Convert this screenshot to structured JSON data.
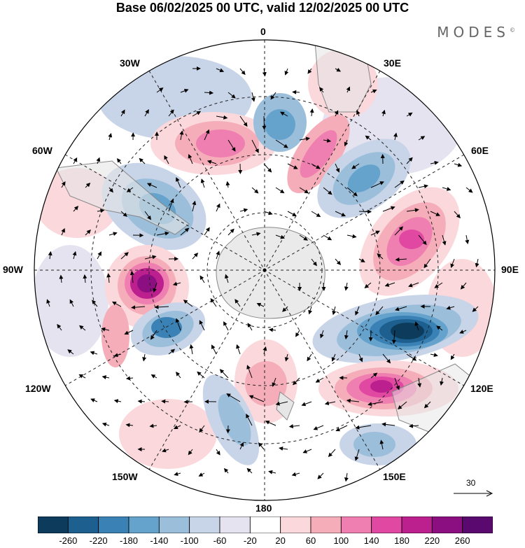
{
  "title": "Base 06/02/2025 00 UTC, valid 12/02/2025 00 UTC",
  "brand": "MODES",
  "brand_mark": "©",
  "longitude_labels": {
    "lon_0": "0",
    "lon_30e": "30E",
    "lon_60e": "60E",
    "lon_90e": "90E",
    "lon_120e": "120E",
    "lon_150e": "150E",
    "lon_180": "180",
    "lon_150w": "150W",
    "lon_120w": "120W",
    "lon_90w": "90W",
    "lon_60w": "60W",
    "lon_30w": "30W"
  },
  "vector_scale_label": "30",
  "colorbar": {
    "tick_labels": [
      "-260",
      "-220",
      "-180",
      "-140",
      "-100",
      "-60",
      "-20",
      "20",
      "60",
      "100",
      "140",
      "180",
      "220",
      "260"
    ],
    "colors": [
      "#0d3b5c",
      "#1d5f8e",
      "#3a82b5",
      "#65a3cc",
      "#9bbedb",
      "#c8d4e8",
      "#e6e3f0",
      "#ffffff",
      "#fbd8dc",
      "#f5aeb9",
      "#ef7fb0",
      "#e048a2",
      "#bc1f8e",
      "#8c0f82",
      "#5a0a6e"
    ]
  },
  "map_colors": {
    "land": "#e6e6e6",
    "coast": "#888888",
    "grid": "#222222"
  }
}
